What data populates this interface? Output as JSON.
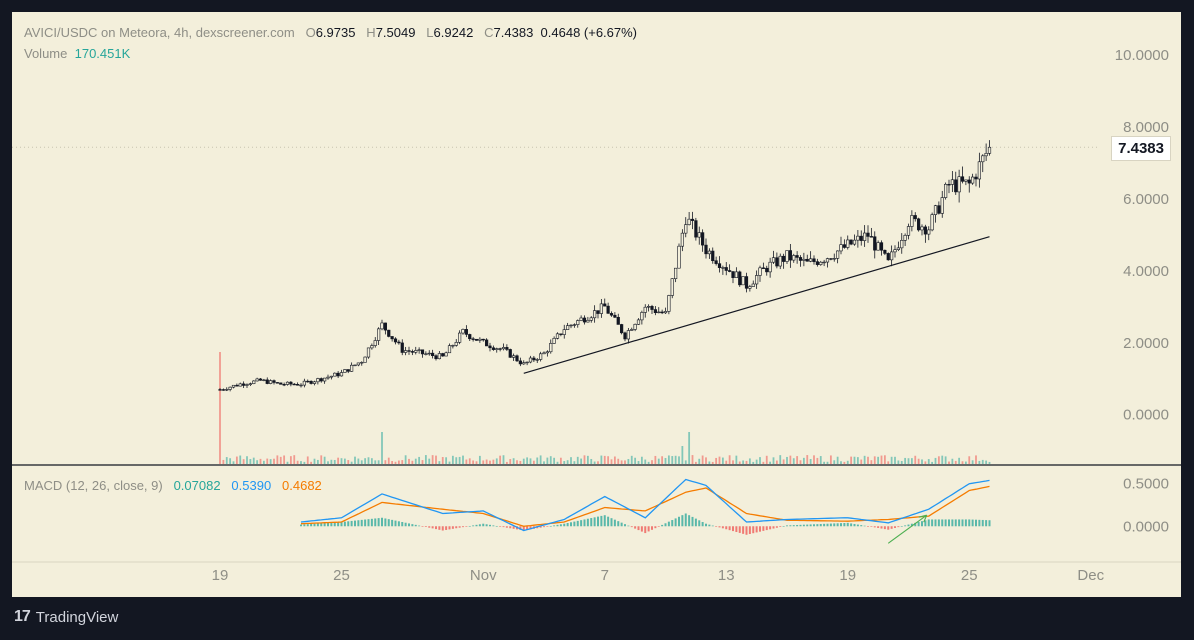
{
  "header": {
    "symbol": "AVICI/USDC on Meteora, 4h, dexscreener.com",
    "open_label": "O",
    "open": "6.9735",
    "high_label": "H",
    "high": "7.5049",
    "low_label": "L",
    "low": "6.9242",
    "close_label": "C",
    "close": "7.4383",
    "change": "0.4648 (+6.67%)",
    "volume_label": "Volume",
    "volume": "170.451K"
  },
  "last_price": "7.4383",
  "macd": {
    "label": "MACD (12, 26, close, 9)",
    "histogram": "0.07082",
    "macd": "0.5390",
    "signal": "0.4682"
  },
  "brand": {
    "name": "TradingView",
    "logo": "17"
  },
  "colors": {
    "background": "#f3efdb",
    "frame": "#131722",
    "up": "#26a69a",
    "down": "#ef5350",
    "macd": "#2196f3",
    "signal": "#f57c00"
  },
  "chart_data": [
    {
      "type": "candlestick",
      "price_axis_ticks": [
        "10.0000",
        "8.0000",
        "6.0000",
        "4.0000",
        "2.0000",
        "0.0000"
      ],
      "time_axis_ticks": [
        "19",
        "25",
        "Nov",
        "7",
        "13",
        "19",
        "25",
        "Dec"
      ],
      "ylim": [
        -1.4,
        11.2
      ],
      "close_path": [
        [
          "Oct 19",
          0.7
        ],
        [
          "Oct 20",
          0.85
        ],
        [
          "Oct 21",
          0.95
        ],
        [
          "Oct 22",
          0.85
        ],
        [
          "Oct 23",
          0.85
        ],
        [
          "Oct 24",
          1.0
        ],
        [
          "Oct 25",
          1.15
        ],
        [
          "Oct 26",
          1.5
        ],
        [
          "Oct 27",
          2.5
        ],
        [
          "Oct 28",
          1.8
        ],
        [
          "Oct 29",
          1.7
        ],
        [
          "Oct 30",
          1.6
        ],
        [
          "Oct 31",
          2.3
        ],
        [
          "Nov 1",
          2.0
        ],
        [
          "Nov 2",
          1.8
        ],
        [
          "Nov 3",
          1.4
        ],
        [
          "Nov 4",
          1.7
        ],
        [
          "Nov 5",
          2.4
        ],
        [
          "Nov 6",
          2.7
        ],
        [
          "Nov 7",
          3.0
        ],
        [
          "Nov 8",
          2.2
        ],
        [
          "Nov 9",
          3.0
        ],
        [
          "Nov 10",
          2.8
        ],
        [
          "Nov 11",
          5.5
        ],
        [
          "Nov 12",
          4.6
        ],
        [
          "Nov 13",
          4.1
        ],
        [
          "Nov 14",
          3.6
        ],
        [
          "Nov 15",
          4.1
        ],
        [
          "Nov 16",
          4.4
        ],
        [
          "Nov 17",
          4.2
        ],
        [
          "Nov 18",
          4.4
        ],
        [
          "Nov 19",
          4.7
        ],
        [
          "Nov 20",
          5.0
        ],
        [
          "Nov 21",
          4.2
        ],
        [
          "Nov 22",
          5.4
        ],
        [
          "Nov 23",
          5.2
        ],
        [
          "Nov 24",
          6.4
        ],
        [
          "Nov 25",
          6.4
        ],
        [
          "Nov 26",
          7.44
        ]
      ],
      "annotations": {
        "trendline": [
          [
            "Nov 3",
            1.15
          ],
          [
            "Nov 26",
            4.95
          ]
        ]
      }
    },
    {
      "type": "macd",
      "axis_ticks": [
        "0.5000",
        "0.0000"
      ],
      "ylim": [
        -0.42,
        0.72
      ],
      "macd": [
        [
          "Oct 23",
          0.05
        ],
        [
          "Oct 25",
          0.1
        ],
        [
          "Oct 27",
          0.38
        ],
        [
          "Oct 30",
          0.15
        ],
        [
          "Nov 1",
          0.18
        ],
        [
          "Nov 3",
          -0.05
        ],
        [
          "Nov 5",
          0.08
        ],
        [
          "Nov 7",
          0.35
        ],
        [
          "Nov 9",
          0.1
        ],
        [
          "Nov 11",
          0.55
        ],
        [
          "Nov 12",
          0.48
        ],
        [
          "Nov 14",
          0.05
        ],
        [
          "Nov 16",
          0.08
        ],
        [
          "Nov 19",
          0.1
        ],
        [
          "Nov 21",
          0.04
        ],
        [
          "Nov 23",
          0.2
        ],
        [
          "Nov 25",
          0.5
        ],
        [
          "Nov 26",
          0.539
        ]
      ],
      "signal": [
        [
          "Oct 23",
          0.03
        ],
        [
          "Oct 25",
          0.05
        ],
        [
          "Oct 27",
          0.28
        ],
        [
          "Oct 30",
          0.2
        ],
        [
          "Nov 1",
          0.15
        ],
        [
          "Nov 3",
          0.0
        ],
        [
          "Nov 5",
          0.05
        ],
        [
          "Nov 7",
          0.22
        ],
        [
          "Nov 9",
          0.18
        ],
        [
          "Nov 11",
          0.4
        ],
        [
          "Nov 12",
          0.45
        ],
        [
          "Nov 14",
          0.15
        ],
        [
          "Nov 16",
          0.07
        ],
        [
          "Nov 19",
          0.06
        ],
        [
          "Nov 21",
          0.08
        ],
        [
          "Nov 23",
          0.12
        ],
        [
          "Nov 25",
          0.42
        ],
        [
          "Nov 26",
          0.468
        ]
      ]
    }
  ]
}
